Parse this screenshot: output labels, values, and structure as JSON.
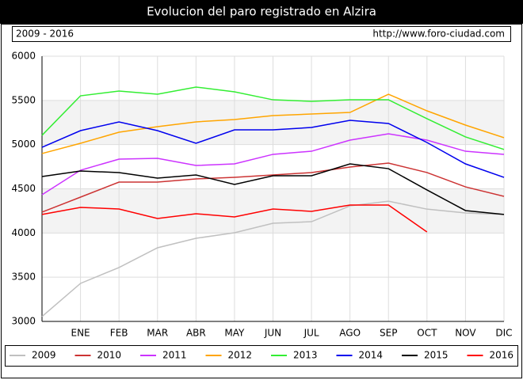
{
  "chart_data": {
    "type": "line",
    "title": "Evolucion del paro registrado en Alzira",
    "subtitle": "2009 - 2016",
    "source": "http://www.foro-ciudad.com",
    "categories": [
      null,
      "ENE",
      "FEB",
      "MAR",
      "ABR",
      "MAY",
      "JUN",
      "JUL",
      "AGO",
      "SEP",
      "OCT",
      "NOV",
      "DIC"
    ],
    "ylim": [
      3000,
      6000
    ],
    "yticks": [
      3000,
      3500,
      4000,
      4500,
      5000,
      5500,
      6000
    ],
    "grid": true,
    "legend": "bottom",
    "series": [
      {
        "name": "2009",
        "color": "#c0c0c0",
        "values": [
          3055,
          3430,
          3610,
          3833,
          3940,
          4003,
          4110,
          4128,
          4307,
          4360,
          4270,
          4227,
          4210
        ]
      },
      {
        "name": "2010",
        "color": "#cc3333",
        "values": [
          4236,
          4406,
          4576,
          4576,
          4612,
          4630,
          4657,
          4684,
          4746,
          4791,
          4684,
          4522,
          4415
        ]
      },
      {
        "name": "2011",
        "color": "#cc33ff",
        "values": [
          4433,
          4710,
          4836,
          4845,
          4764,
          4782,
          4890,
          4925,
          5051,
          5122,
          5051,
          4925,
          4890
        ]
      },
      {
        "name": "2012",
        "color": "#ffa500",
        "values": [
          4899,
          5015,
          5140,
          5203,
          5257,
          5284,
          5328,
          5346,
          5364,
          5570,
          5382,
          5221,
          5078
        ]
      },
      {
        "name": "2013",
        "color": "#33ee33",
        "values": [
          5105,
          5552,
          5606,
          5570,
          5651,
          5597,
          5507,
          5490,
          5507,
          5507,
          5293,
          5087,
          4945
        ]
      },
      {
        "name": "2014",
        "color": "#0000ee",
        "values": [
          4970,
          5158,
          5257,
          5158,
          5015,
          5167,
          5167,
          5194,
          5275,
          5239,
          5024,
          4782,
          4630
        ]
      },
      {
        "name": "2015",
        "color": "#000000",
        "values": [
          4639,
          4701,
          4684,
          4621,
          4657,
          4549,
          4648,
          4648,
          4782,
          4728,
          4487,
          4254,
          4210
        ]
      },
      {
        "name": "2016",
        "color": "#ff0000",
        "values": [
          4210,
          4290,
          4272,
          4164,
          4218,
          4182,
          4272,
          4245,
          4316,
          4316,
          4012,
          null,
          null
        ]
      }
    ]
  }
}
